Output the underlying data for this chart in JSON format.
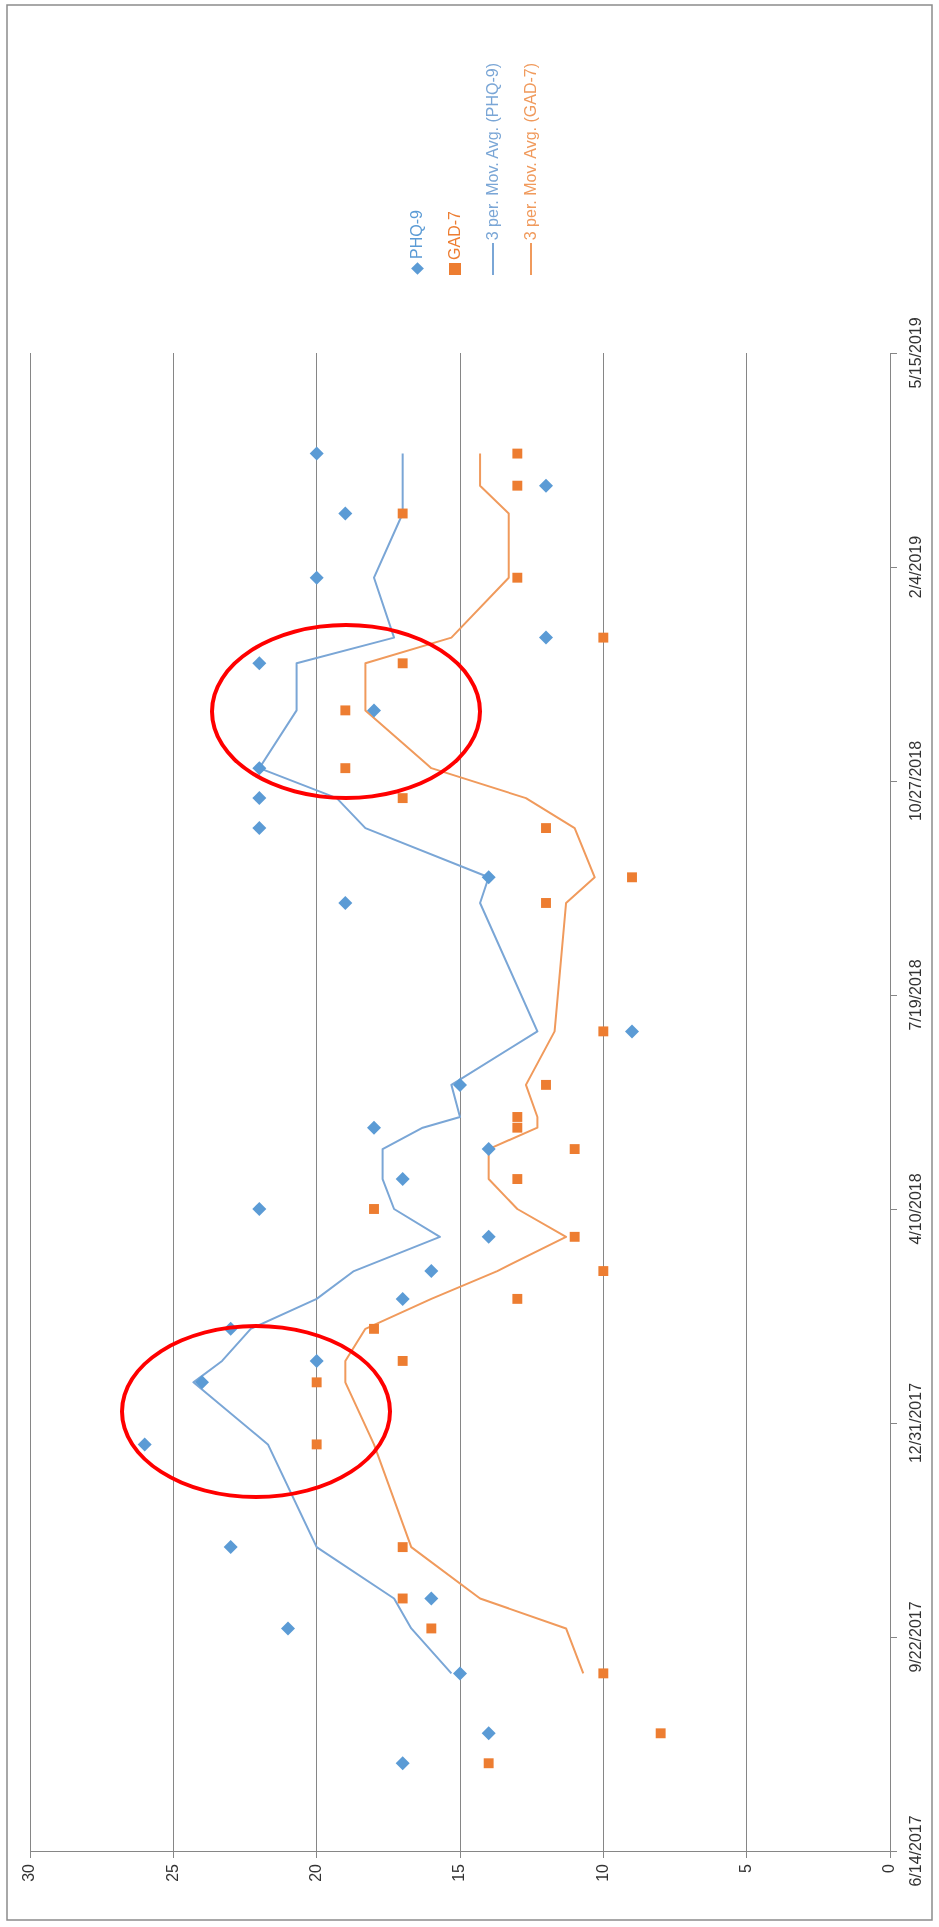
{
  "chart_data": {
    "type": "scatter",
    "orientation": "horizontal",
    "x": [
      "2017-07-25",
      "2017-08-08",
      "2017-09-05",
      "2017-09-26",
      "2017-10-10",
      "2017-11-03",
      "2017-12-21",
      "2018-01-19",
      "2018-01-29",
      "2018-02-13",
      "2018-02-27",
      "2018-03-12",
      "2018-03-28",
      "2018-04-10",
      "2018-04-24",
      "2018-05-08",
      "2018-05-18",
      "2018-05-23",
      "2018-06-07",
      "2018-07-02",
      "2018-08-31",
      "2018-09-12",
      "2018-10-05",
      "2018-10-19",
      "2018-11-02",
      "2018-11-29",
      "2018-12-21",
      "2019-01-02",
      "2019-01-30",
      "2019-03-01",
      "2019-03-14",
      "2019-03-29"
    ],
    "series": [
      {
        "name": "PHQ-9",
        "type": "scatter",
        "marker": "diamond",
        "color": "#5b9bd5",
        "values": [
          17,
          14,
          15,
          21,
          16,
          23,
          26,
          24,
          20,
          23,
          17,
          16,
          14,
          22,
          17,
          14,
          18,
          null,
          15,
          9,
          19,
          14,
          22,
          22,
          22,
          18,
          22,
          12,
          20,
          19,
          12,
          20
        ]
      },
      {
        "name": "GAD-7",
        "type": "scatter",
        "marker": "square",
        "color": "#ed7d31",
        "values": [
          14,
          8,
          10,
          16,
          17,
          17,
          20,
          20,
          17,
          18,
          13,
          10,
          11,
          18,
          13,
          11,
          13,
          13,
          12,
          10,
          12,
          9,
          12,
          17,
          19,
          19,
          17,
          10,
          13,
          17,
          13,
          13
        ]
      },
      {
        "name": "3 per. Mov. Avg. (PHQ-9)",
        "type": "line",
        "marker": "none",
        "line_style": "solid",
        "color": "#7aa6d6",
        "values": [
          null,
          null,
          15.3,
          16.7,
          17.3,
          20,
          21.7,
          24.3,
          23.3,
          22.3,
          20,
          18.7,
          15.7,
          17.3,
          17.7,
          17.7,
          16.3,
          15,
          15.3,
          12.3,
          14.3,
          14,
          18.3,
          19.3,
          22,
          20.7,
          20.7,
          17.3,
          18,
          17,
          17,
          17
        ]
      },
      {
        "name": "3 per. Mov. Avg. (GAD-7)",
        "type": "line",
        "marker": "none",
        "line_style": "solid",
        "color": "#f09a5c",
        "values": [
          null,
          null,
          10.7,
          11.3,
          14.3,
          16.7,
          18,
          19,
          19,
          18.3,
          16,
          13.7,
          11.3,
          13,
          14,
          14,
          12.3,
          12.3,
          12.7,
          11.7,
          11.3,
          10.3,
          11,
          12.7,
          16,
          18.3,
          18.3,
          15.3,
          13.3,
          13.3,
          14.3,
          14.3
        ]
      }
    ],
    "xlim": [
      30,
      0
    ],
    "xticks": [
      30,
      25,
      20,
      15,
      10,
      5,
      0
    ],
    "ylim": [
      "2017-06-14",
      "2019-05-15"
    ],
    "yticks": [
      {
        "value": "2017-06-14",
        "label": "6/14/2017"
      },
      {
        "value": "2017-09-22",
        "label": "9/22/2017"
      },
      {
        "value": "2017-12-31",
        "label": "12/31/2017"
      },
      {
        "value": "2018-04-10",
        "label": "4/10/2018"
      },
      {
        "value": "2018-07-19",
        "label": "7/19/2018"
      },
      {
        "value": "2018-10-27",
        "label": "10/27/2018"
      },
      {
        "value": "2019-02-04",
        "label": "2/4/2019"
      },
      {
        "value": "2019-05-15",
        "label": "5/15/2019"
      }
    ],
    "grid": "x",
    "legend": "top"
  }
}
